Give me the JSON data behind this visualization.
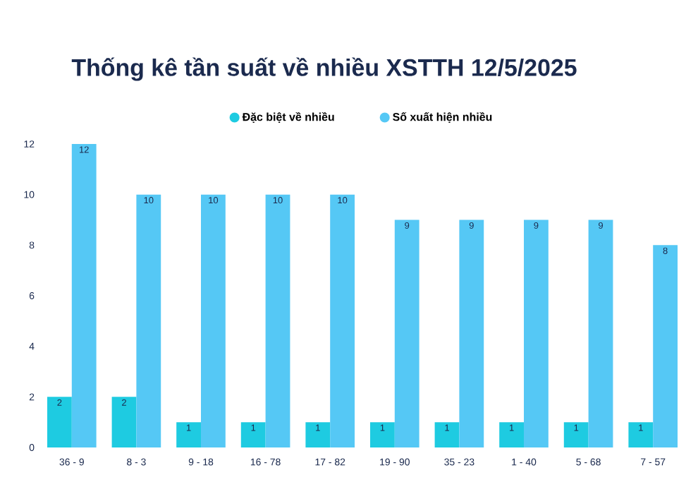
{
  "chart_data": {
    "type": "bar",
    "title": "Thống kê tần suất về nhiều XSTTH 12/5/2025",
    "categories": [
      "36 - 9",
      "8 - 3",
      "9 - 18",
      "16 - 78",
      "17 - 82",
      "19 - 90",
      "35 - 23",
      "1 - 40",
      "5 - 68",
      "7 - 57"
    ],
    "series": [
      {
        "name": "Đặc biệt về nhiều",
        "color": "#1ecbe1",
        "values": [
          2,
          2,
          1,
          1,
          1,
          1,
          1,
          1,
          1,
          1
        ]
      },
      {
        "name": "Số xuất hiện nhiều",
        "color": "#55c8f5",
        "values": [
          12,
          10,
          10,
          10,
          10,
          9,
          9,
          9,
          9,
          8
        ]
      }
    ],
    "ylim": [
      0,
      12
    ],
    "yticks": [
      0,
      2,
      4,
      6,
      8,
      10,
      12
    ],
    "data_labels": true,
    "legend": "top",
    "grid": false
  }
}
